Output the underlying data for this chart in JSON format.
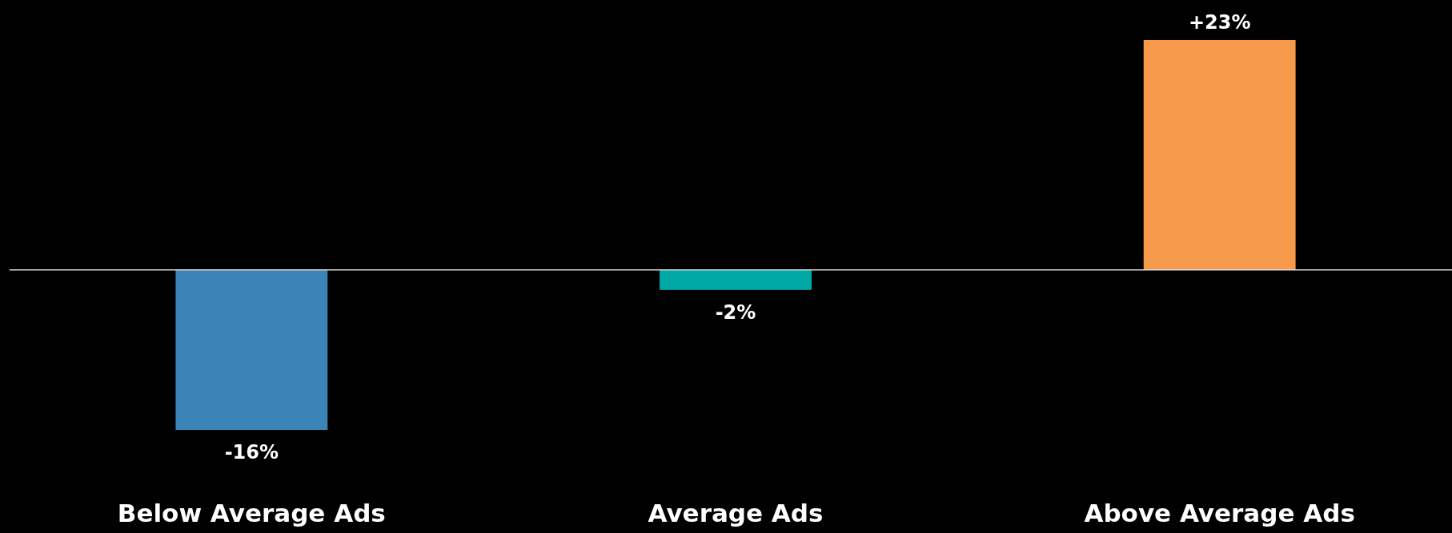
{
  "chart_data": {
    "type": "bar",
    "categories": [
      "Below Average Ads",
      "Average Ads",
      "Above Average Ads"
    ],
    "values": [
      -16,
      -2,
      23
    ],
    "colors": [
      "#3a84b8",
      "#00a9a5",
      "#f79a4b"
    ],
    "value_labels": [
      "-16%",
      "-2%",
      "+23%"
    ]
  }
}
